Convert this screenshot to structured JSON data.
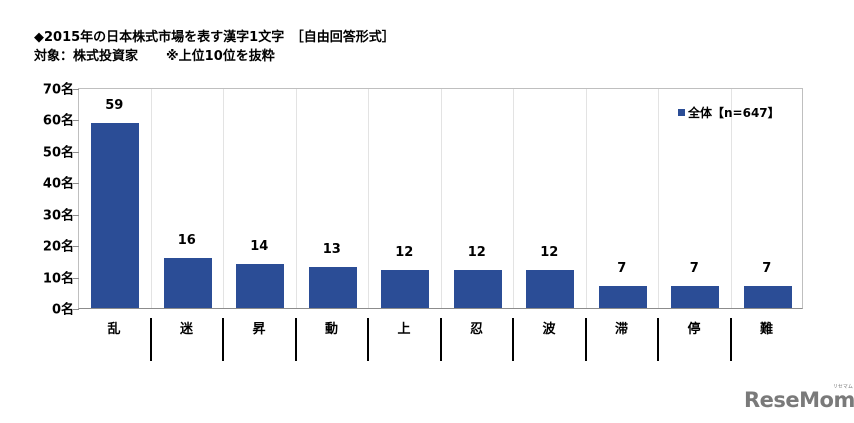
{
  "header": {
    "title": "◆2015年の日本株式市場を表す漢字1文字　［自由回答形式］",
    "subtitle": "対象：株式投資家",
    "note": "※上位10位を抜粋"
  },
  "legend": {
    "label": "全体【n=647】",
    "color": "#2b4d96"
  },
  "y_axis": {
    "ticks": [
      "0名",
      "10名",
      "20名",
      "30名",
      "40名",
      "50名",
      "60名",
      "70名"
    ]
  },
  "x_axis": {
    "categories": [
      "乱",
      "迷",
      "昇",
      "動",
      "上",
      "忍",
      "波",
      "滞",
      "停",
      "難"
    ]
  },
  "data_labels": [
    "59",
    "16",
    "14",
    "13",
    "12",
    "12",
    "12",
    "7",
    "7",
    "7"
  ],
  "logo": {
    "text": "ReseMom",
    "kana": "リセマム"
  },
  "chart_data": {
    "type": "bar",
    "title": "◆2015年の日本株式市場を表す漢字1文字　［自由回答形式］",
    "subtitle": "対象：株式投資家　※上位10位を抜粋",
    "categories": [
      "乱",
      "迷",
      "昇",
      "動",
      "上",
      "忍",
      "波",
      "滞",
      "停",
      "難"
    ],
    "series": [
      {
        "name": "全体【n=647】",
        "values": [
          59,
          16,
          14,
          13,
          12,
          12,
          12,
          7,
          7,
          7
        ],
        "color": "#2b4d96"
      }
    ],
    "xlabel": "",
    "ylabel": "",
    "ylim": [
      0,
      70
    ],
    "yticks": [
      0,
      10,
      20,
      30,
      40,
      50,
      60,
      70
    ],
    "ytick_suffix": "名",
    "grid": "vertical separators only",
    "legend_position": "top-right inside plot",
    "data_labels": true
  }
}
